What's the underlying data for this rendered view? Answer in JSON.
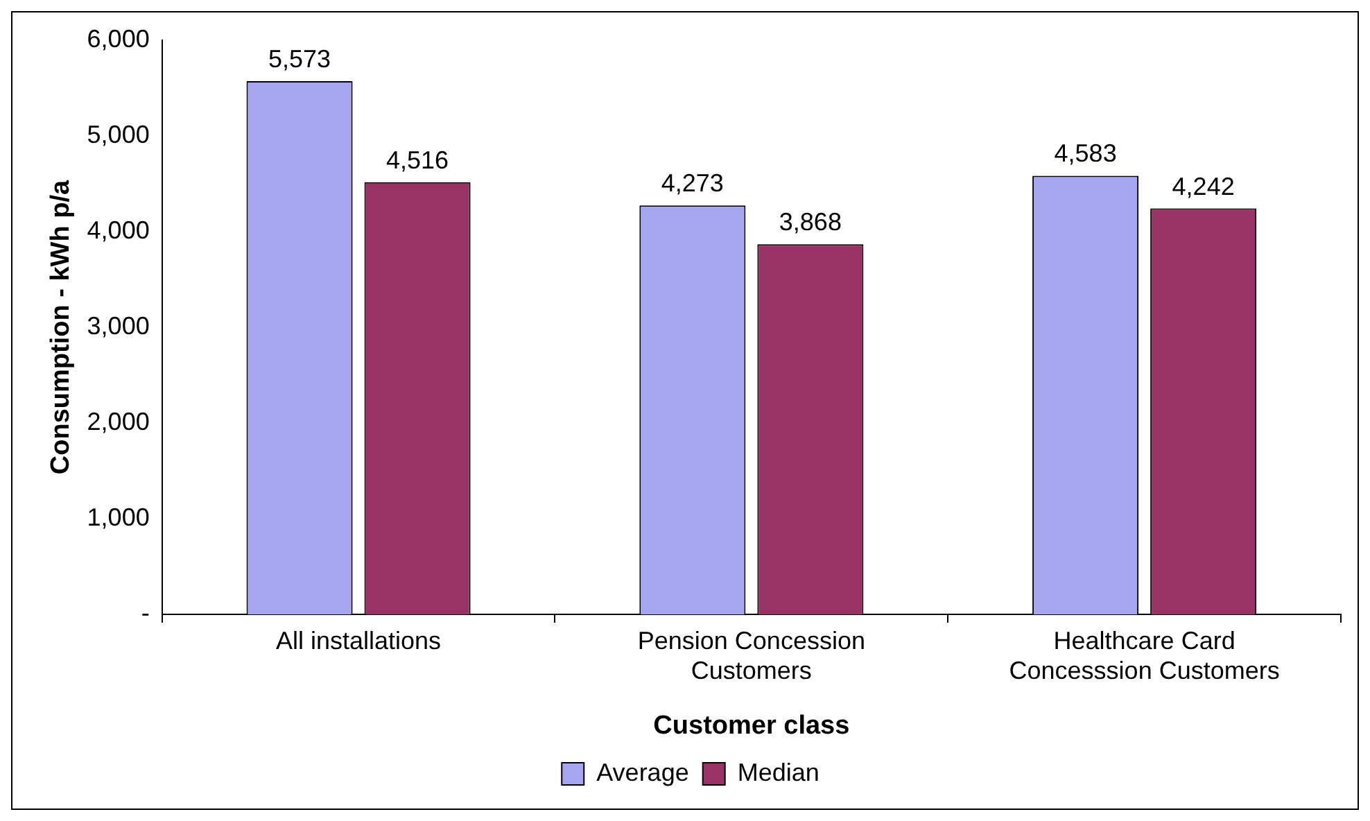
{
  "chart_data": {
    "type": "bar",
    "xlabel": "Customer class",
    "ylabel": "Consumption - kWh p/a",
    "categories": [
      "All installations",
      "Pension Concession Customers",
      "Healthcare Card Concesssion Customers"
    ],
    "series": [
      {
        "name": "Average",
        "color": "#a6a6f0",
        "values": [
          5573,
          4273,
          4583
        ],
        "value_labels": [
          "5,573",
          "4,273",
          "4,583"
        ]
      },
      {
        "name": "Median",
        "color": "#993366",
        "values": [
          4516,
          3868,
          4242
        ],
        "value_labels": [
          "4,516",
          "3,868",
          "4,242"
        ]
      }
    ],
    "ylim": [
      0,
      6000
    ],
    "yticks": [
      {
        "value": 0,
        "label": "-"
      },
      {
        "value": 1000,
        "label": "1,000"
      },
      {
        "value": 2000,
        "label": "2,000"
      },
      {
        "value": 3000,
        "label": "3,000"
      },
      {
        "value": 4000,
        "label": "4,000"
      },
      {
        "value": 5000,
        "label": "5,000"
      },
      {
        "value": 6000,
        "label": "6,000"
      }
    ],
    "grid": false,
    "legend": "bottom"
  }
}
